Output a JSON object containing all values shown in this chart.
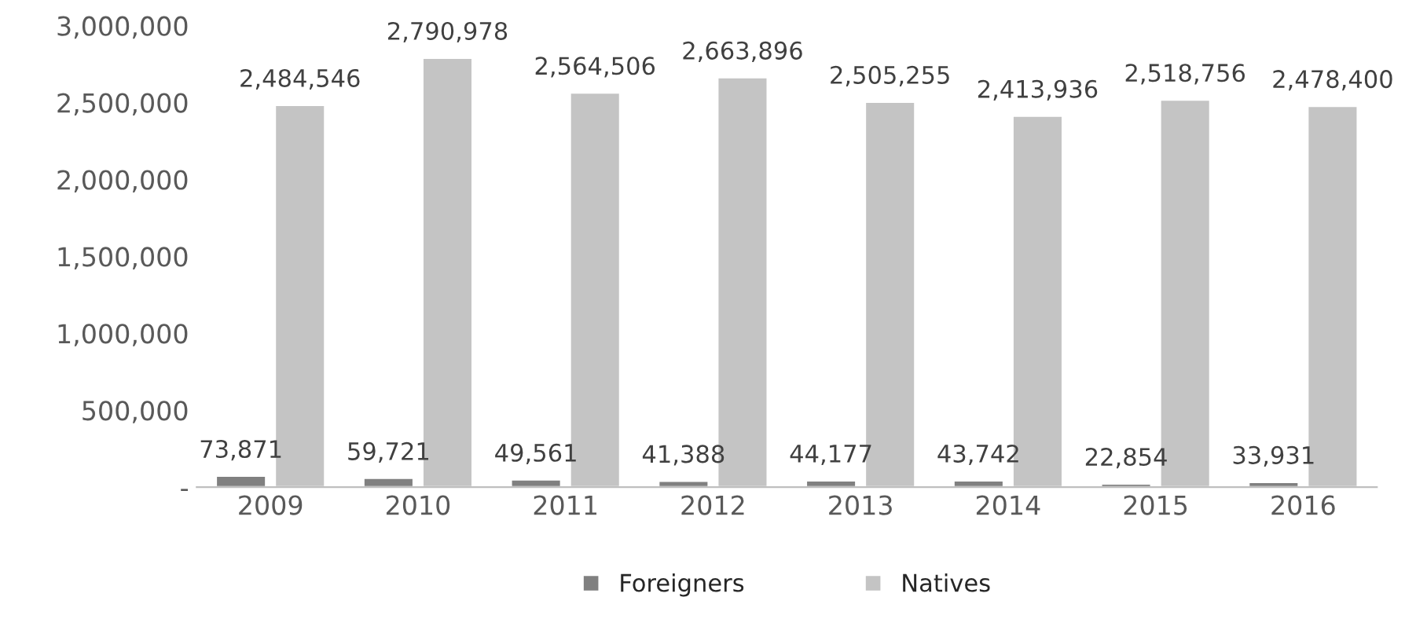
{
  "chart_data": {
    "type": "bar",
    "categories": [
      "2009",
      "2010",
      "2011",
      "2012",
      "2013",
      "2014",
      "2015",
      "2016"
    ],
    "series": [
      {
        "name": "Foreigners",
        "color": "#808080",
        "values": [
          73871,
          59721,
          49561,
          41388,
          44177,
          43742,
          22854,
          33931
        ],
        "value_labels": [
          "73,871",
          "59,721",
          "49,561",
          "41,388",
          "44,177",
          "43,742",
          "22,854",
          "33,931"
        ]
      },
      {
        "name": "Natives",
        "color": "#c4c4c4",
        "values": [
          2484546,
          2790978,
          2564506,
          2663896,
          2505255,
          2413936,
          2518756,
          2478400
        ],
        "value_labels": [
          "2,484,546",
          "2,790,978",
          "2,564,506",
          "2,663,896",
          "2,505,255",
          "2,413,936",
          "2,518,756",
          "2,478,400"
        ]
      }
    ],
    "ylim": [
      0,
      3000000
    ],
    "yticks": [
      {
        "value": 0,
        "label": "-"
      },
      {
        "value": 500000,
        "label": "500,000"
      },
      {
        "value": 1000000,
        "label": "1,000,000"
      },
      {
        "value": 1500000,
        "label": "1,500,000"
      },
      {
        "value": 2000000,
        "label": "2,000,000"
      },
      {
        "value": 2500000,
        "label": "2,500,000"
      },
      {
        "value": 3000000,
        "label": "3,000,000"
      }
    ],
    "grid": false,
    "legend": "bottom"
  }
}
